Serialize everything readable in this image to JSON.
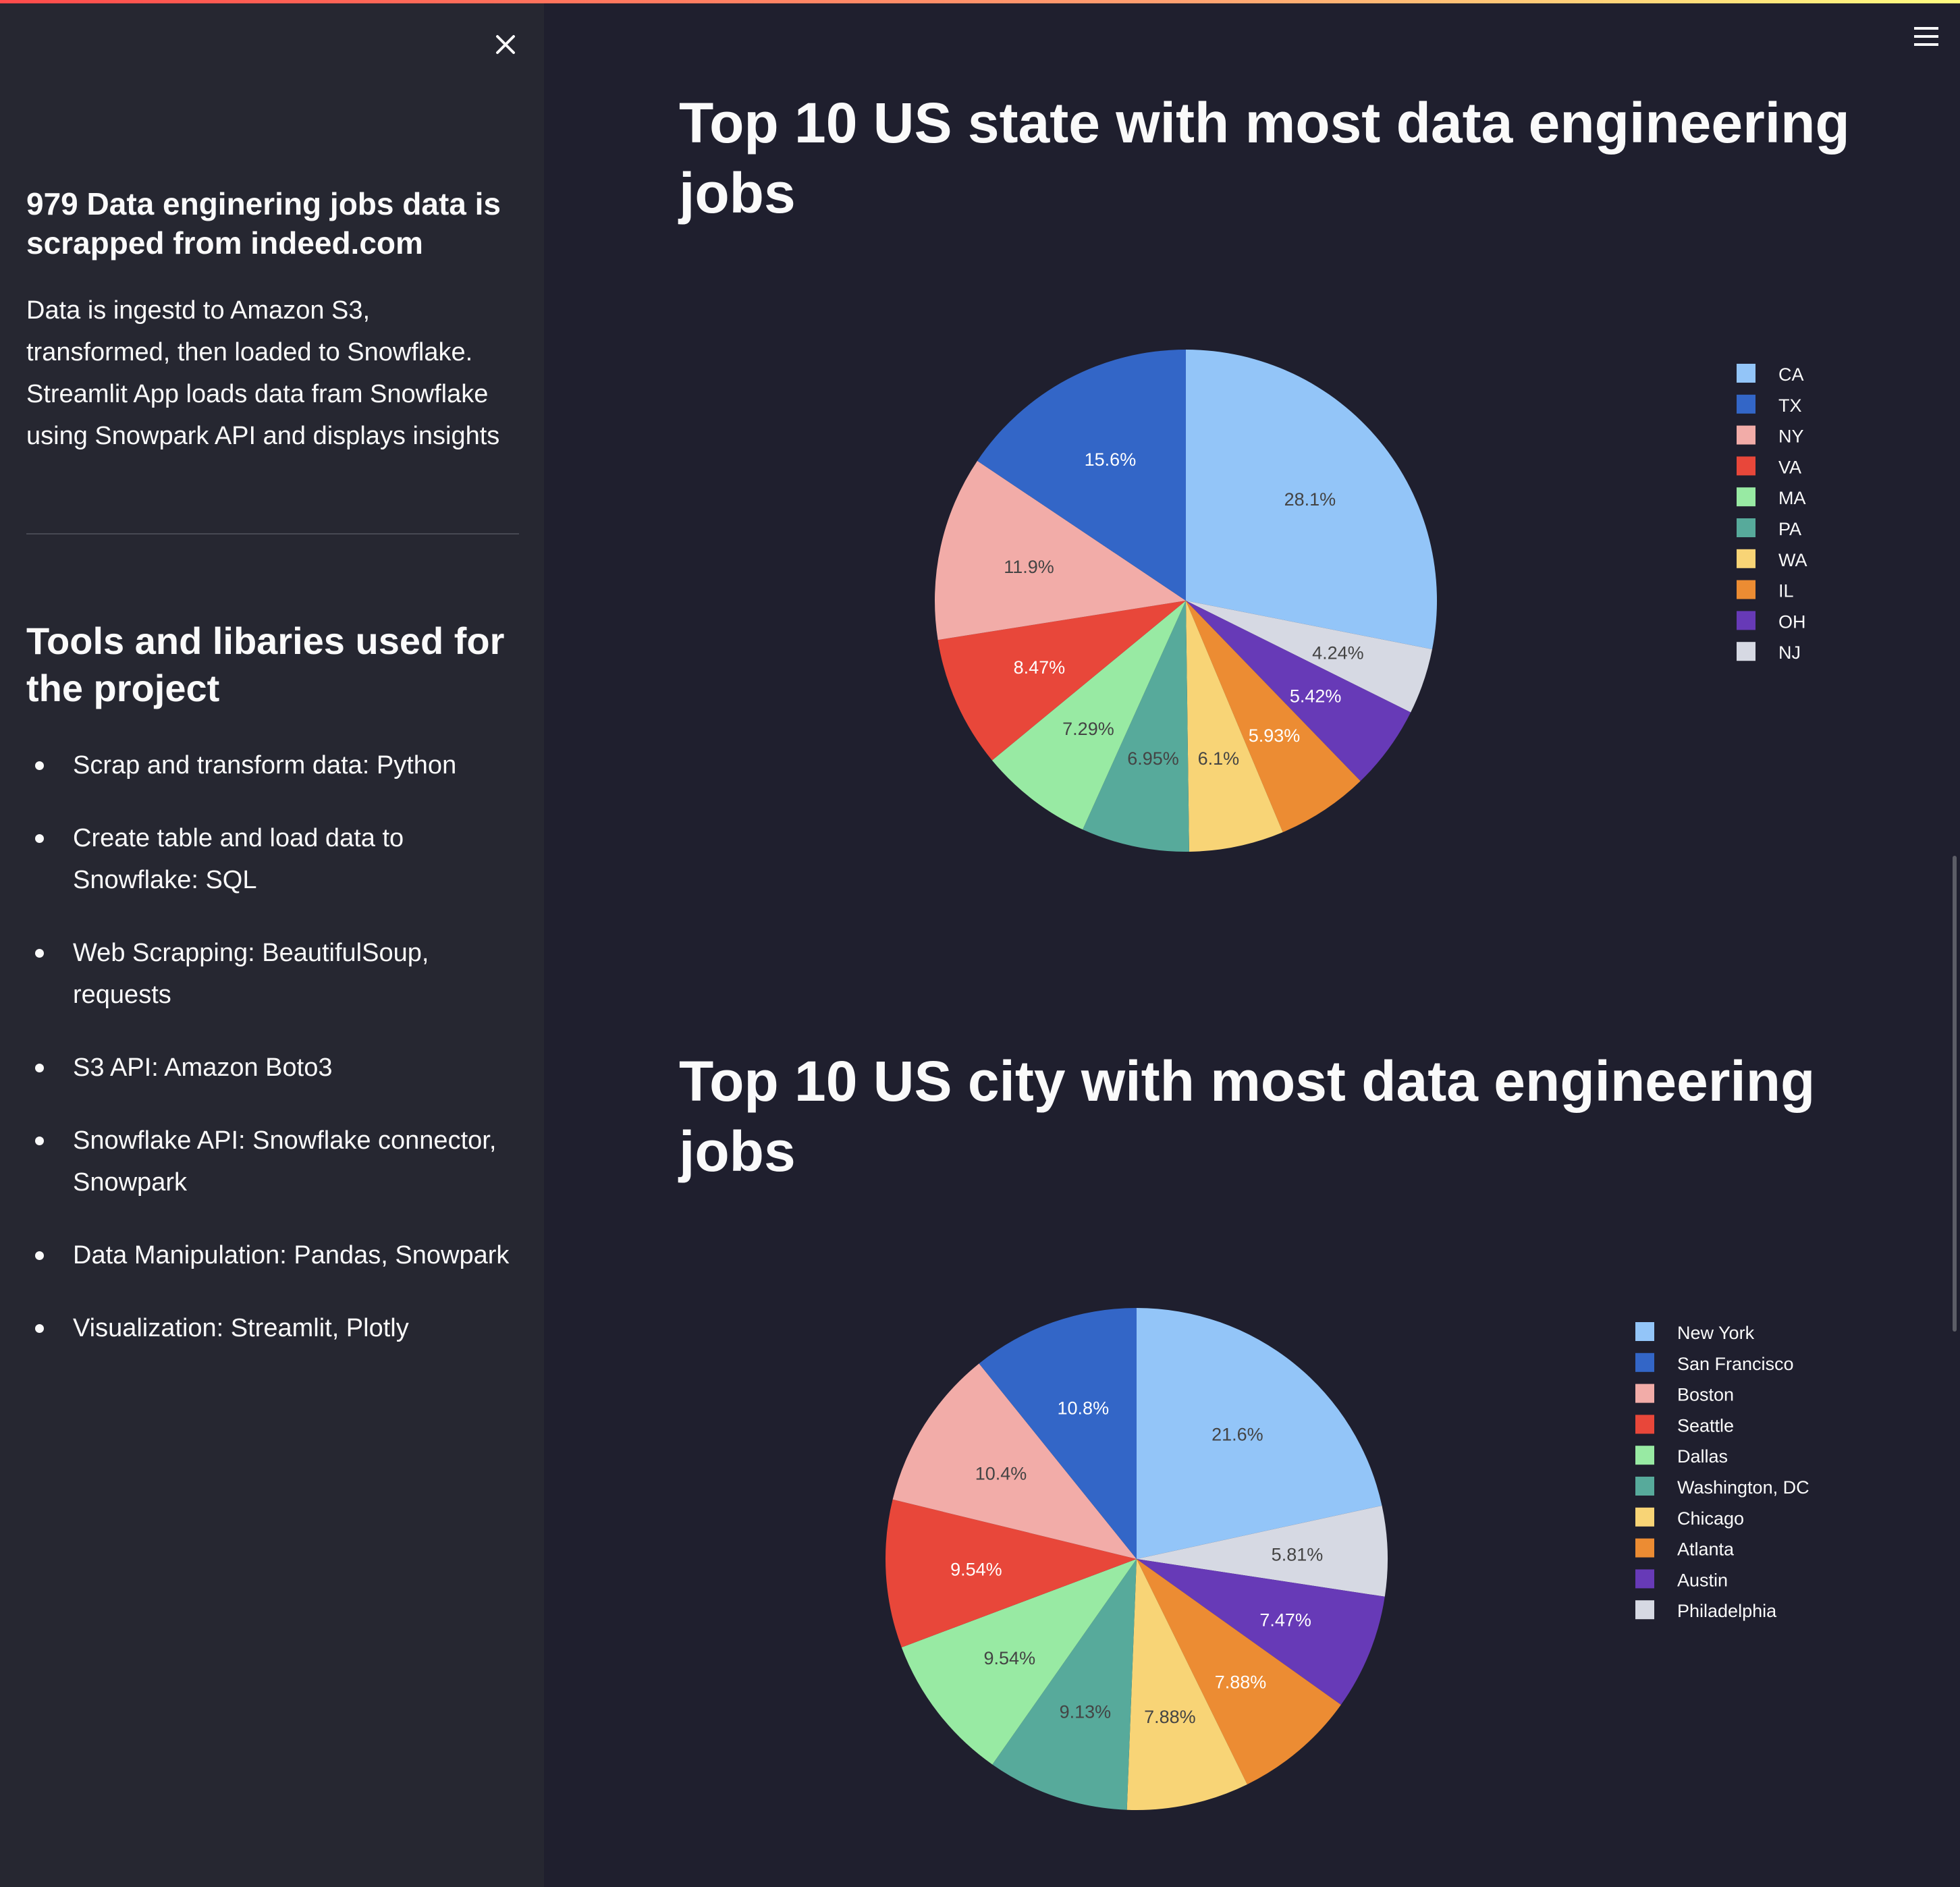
{
  "sidebar": {
    "close_label": "close",
    "heading": "979 Data enginering jobs data is scrapped from indeed.com",
    "description": "Data is ingestd to Amazon S3, transformed, then loaded to Snowflake. Streamlit App loads data fram Snowflake using Snowpark API and displays insights",
    "tools_heading": "Tools and libaries used for the project",
    "tools": [
      "Scrap and transform data: Python",
      "Create table and load data to Snowflake: SQL",
      "Web Scrapping: BeautifulSoup, requests",
      "S3 API: Amazon Boto3",
      "Snowflake API: Snowflake connector, Snowpark",
      "Data Manipulation: Pandas, Snowpark",
      "Visualization: Streamlit, Plotly"
    ]
  },
  "colors": {
    "background": "#1f1f2e",
    "sidebar": "#262731",
    "palette": [
      "#93c5f8",
      "#3366c7",
      "#f2aca8",
      "#e8473a",
      "#98eaa3",
      "#57aa9b",
      "#f8d476",
      "#ec8c33",
      "#673ab7",
      "#d6d9e3"
    ]
  },
  "chart_data": [
    {
      "type": "pie",
      "title": "Top 10 US state with most data engineering jobs",
      "labels": [
        "CA",
        "TX",
        "NY",
        "VA",
        "MA",
        "PA",
        "WA",
        "IL",
        "OH",
        "NJ"
      ],
      "values": [
        28.1,
        15.6,
        11.9,
        8.47,
        7.29,
        6.95,
        6.1,
        5.93,
        5.42,
        4.24
      ],
      "slice_order": [
        "CA",
        "NJ",
        "OH",
        "IL",
        "WA",
        "PA",
        "MA",
        "VA",
        "NY",
        "TX"
      ],
      "value_labels": [
        "28.1%",
        "15.6%",
        "11.9%",
        "8.47%",
        "7.29%",
        "6.95%",
        "6.1%",
        "5.93%",
        "5.42%",
        "4.24%"
      ],
      "legend": "top-right"
    },
    {
      "type": "pie",
      "title": "Top 10 US city with most data engineering jobs",
      "labels": [
        "New York",
        "San Francisco",
        "Boston",
        "Seattle",
        "Dallas",
        "Washington, DC",
        "Chicago",
        "Atlanta",
        "Austin",
        "Philadelphia"
      ],
      "values": [
        21.6,
        10.8,
        10.4,
        9.54,
        9.54,
        9.13,
        7.88,
        7.88,
        7.47,
        5.81
      ],
      "slice_order": [
        "New York",
        "Philadelphia",
        "Austin",
        "Atlanta",
        "Chicago",
        "Washington, DC",
        "Dallas",
        "Seattle",
        "Boston",
        "San Francisco"
      ],
      "value_labels": [
        "21.6%",
        "10.8%",
        "10.4%",
        "9.54%",
        "9.54%",
        "9.13%",
        "7.88%",
        "7.88%",
        "7.47%",
        "5.81%"
      ],
      "legend": "top-right"
    }
  ]
}
